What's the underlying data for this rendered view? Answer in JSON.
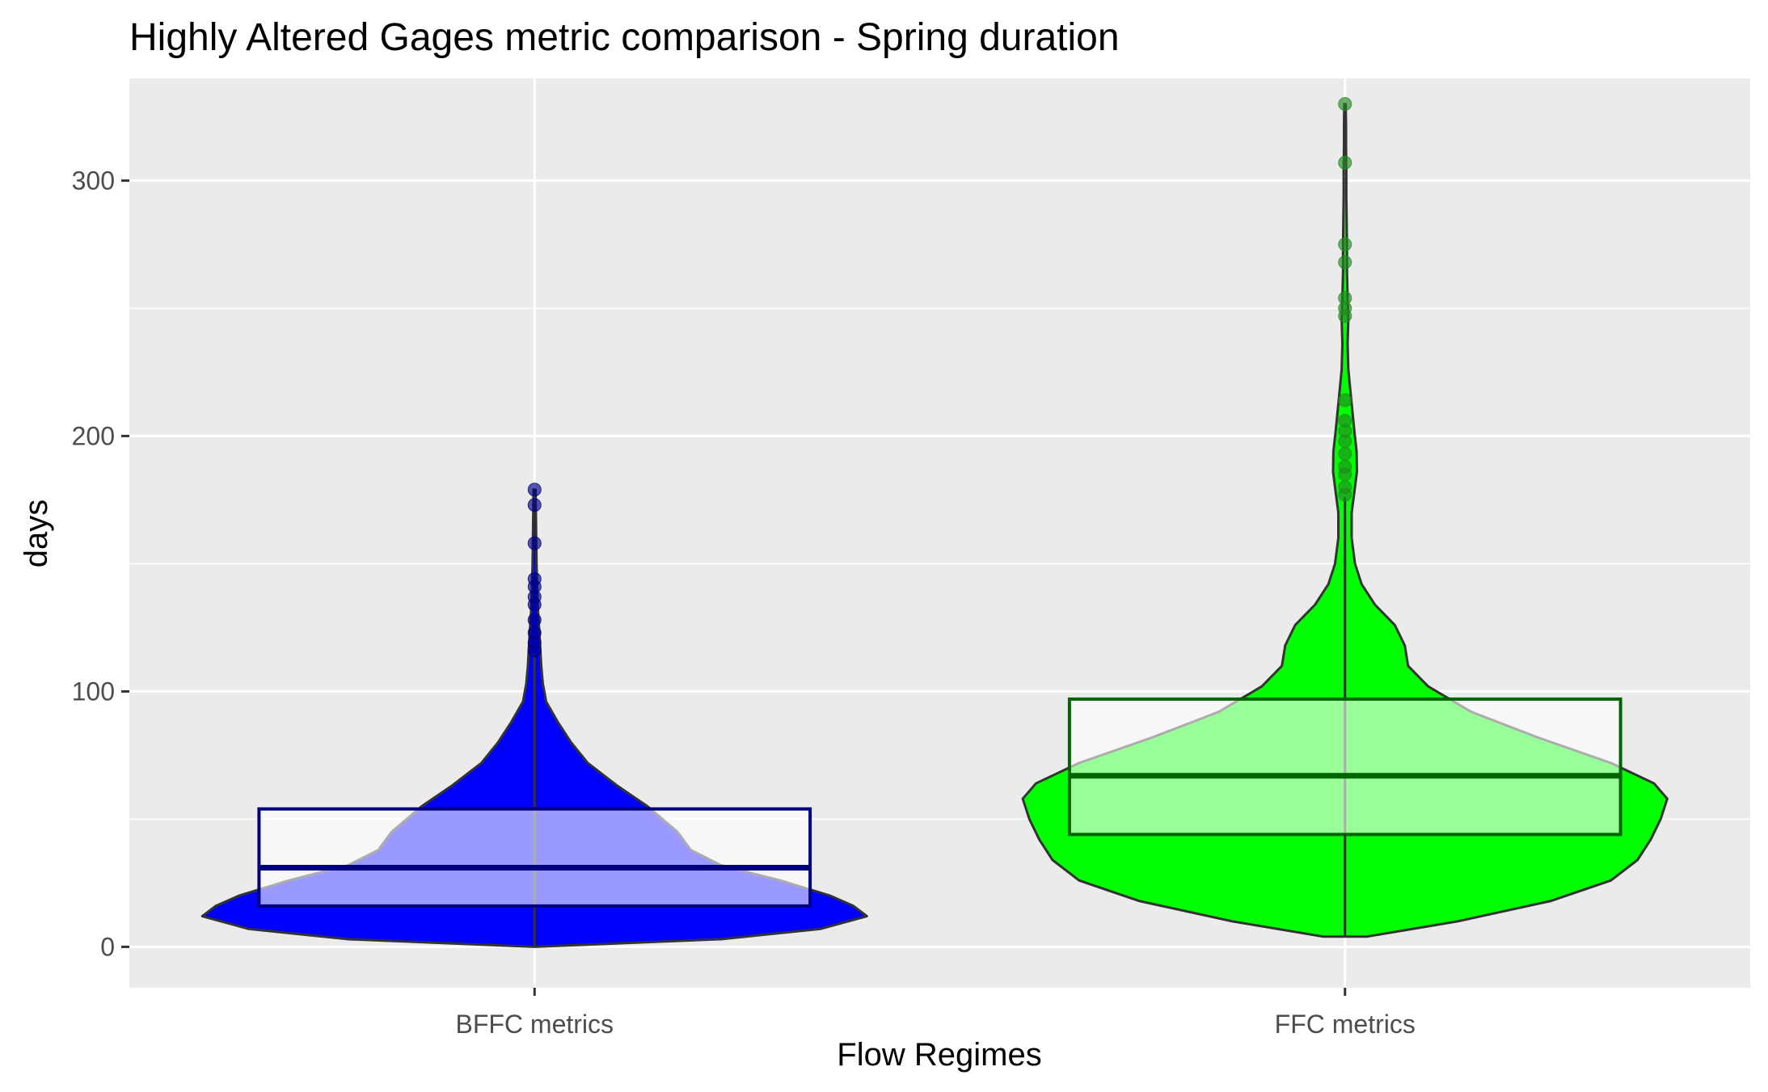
{
  "chart_data": {
    "type": "violin",
    "title": "Highly Altered Gages metric comparison - Spring duration",
    "xlabel": "Flow Regimes",
    "ylabel": "days",
    "ylim": [
      -16,
      340
    ],
    "yticks": [
      0,
      100,
      200,
      300
    ],
    "grid": true,
    "legend": "none",
    "categories": [
      "BFFC metrics",
      "FFC metrics"
    ],
    "series": [
      {
        "category": "BFFC metrics",
        "fill_color": "#0000ff",
        "box_color": "#00007f",
        "point_color": "#00008b",
        "box": {
          "q1": 16,
          "median": 31,
          "q3": 54,
          "whisker_low": 0,
          "whisker_high": 115
        },
        "density": [
          [
            0,
            0.0
          ],
          [
            3,
            0.56
          ],
          [
            7,
            0.86
          ],
          [
            12,
            1.0
          ],
          [
            16,
            0.96
          ],
          [
            20,
            0.89
          ],
          [
            26,
            0.74
          ],
          [
            32,
            0.56
          ],
          [
            38,
            0.47
          ],
          [
            45,
            0.43
          ],
          [
            55,
            0.34
          ],
          [
            63,
            0.25
          ],
          [
            72,
            0.16
          ],
          [
            80,
            0.11
          ],
          [
            88,
            0.07
          ],
          [
            96,
            0.035
          ],
          [
            103,
            0.025
          ],
          [
            110,
            0.02
          ],
          [
            120,
            0.016
          ],
          [
            130,
            0.011
          ],
          [
            140,
            0.008
          ],
          [
            150,
            0.006
          ],
          [
            160,
            0.005
          ],
          [
            170,
            0.004
          ],
          [
            179,
            0.003
          ]
        ],
        "outliers": [
          179,
          173,
          158,
          144,
          141,
          137,
          134,
          128,
          123,
          119,
          116
        ]
      },
      {
        "category": "FFC metrics",
        "fill_color": "#00ff00",
        "box_color": "#006400",
        "point_color": "#228b22",
        "box": {
          "q1": 44,
          "median": 67,
          "q3": 97,
          "whisker_low": 4,
          "whisker_high": 176
        },
        "density": [
          [
            4,
            0.065
          ],
          [
            10,
            0.34
          ],
          [
            18,
            0.62
          ],
          [
            26,
            0.8
          ],
          [
            34,
            0.88
          ],
          [
            42,
            0.92
          ],
          [
            50,
            0.95
          ],
          [
            58,
            0.97
          ],
          [
            64,
            0.93
          ],
          [
            72,
            0.8
          ],
          [
            82,
            0.58
          ],
          [
            92,
            0.38
          ],
          [
            102,
            0.25
          ],
          [
            110,
            0.19
          ],
          [
            118,
            0.18
          ],
          [
            126,
            0.15
          ],
          [
            134,
            0.09
          ],
          [
            142,
            0.05
          ],
          [
            150,
            0.03
          ],
          [
            160,
            0.02
          ],
          [
            170,
            0.02
          ],
          [
            178,
            0.028
          ],
          [
            186,
            0.036
          ],
          [
            194,
            0.035
          ],
          [
            202,
            0.028
          ],
          [
            210,
            0.022
          ],
          [
            218,
            0.016
          ],
          [
            226,
            0.01
          ],
          [
            236,
            0.008
          ],
          [
            246,
            0.01
          ],
          [
            254,
            0.008
          ],
          [
            264,
            0.006
          ],
          [
            274,
            0.006
          ],
          [
            284,
            0.005
          ],
          [
            294,
            0.004
          ],
          [
            304,
            0.004
          ],
          [
            314,
            0.003
          ],
          [
            322,
            0.003
          ],
          [
            330,
            0.002
          ]
        ],
        "outliers": [
          330,
          307,
          275,
          268,
          254,
          250,
          247,
          214,
          206,
          202,
          198,
          193,
          188,
          185,
          180,
          177
        ]
      }
    ]
  }
}
